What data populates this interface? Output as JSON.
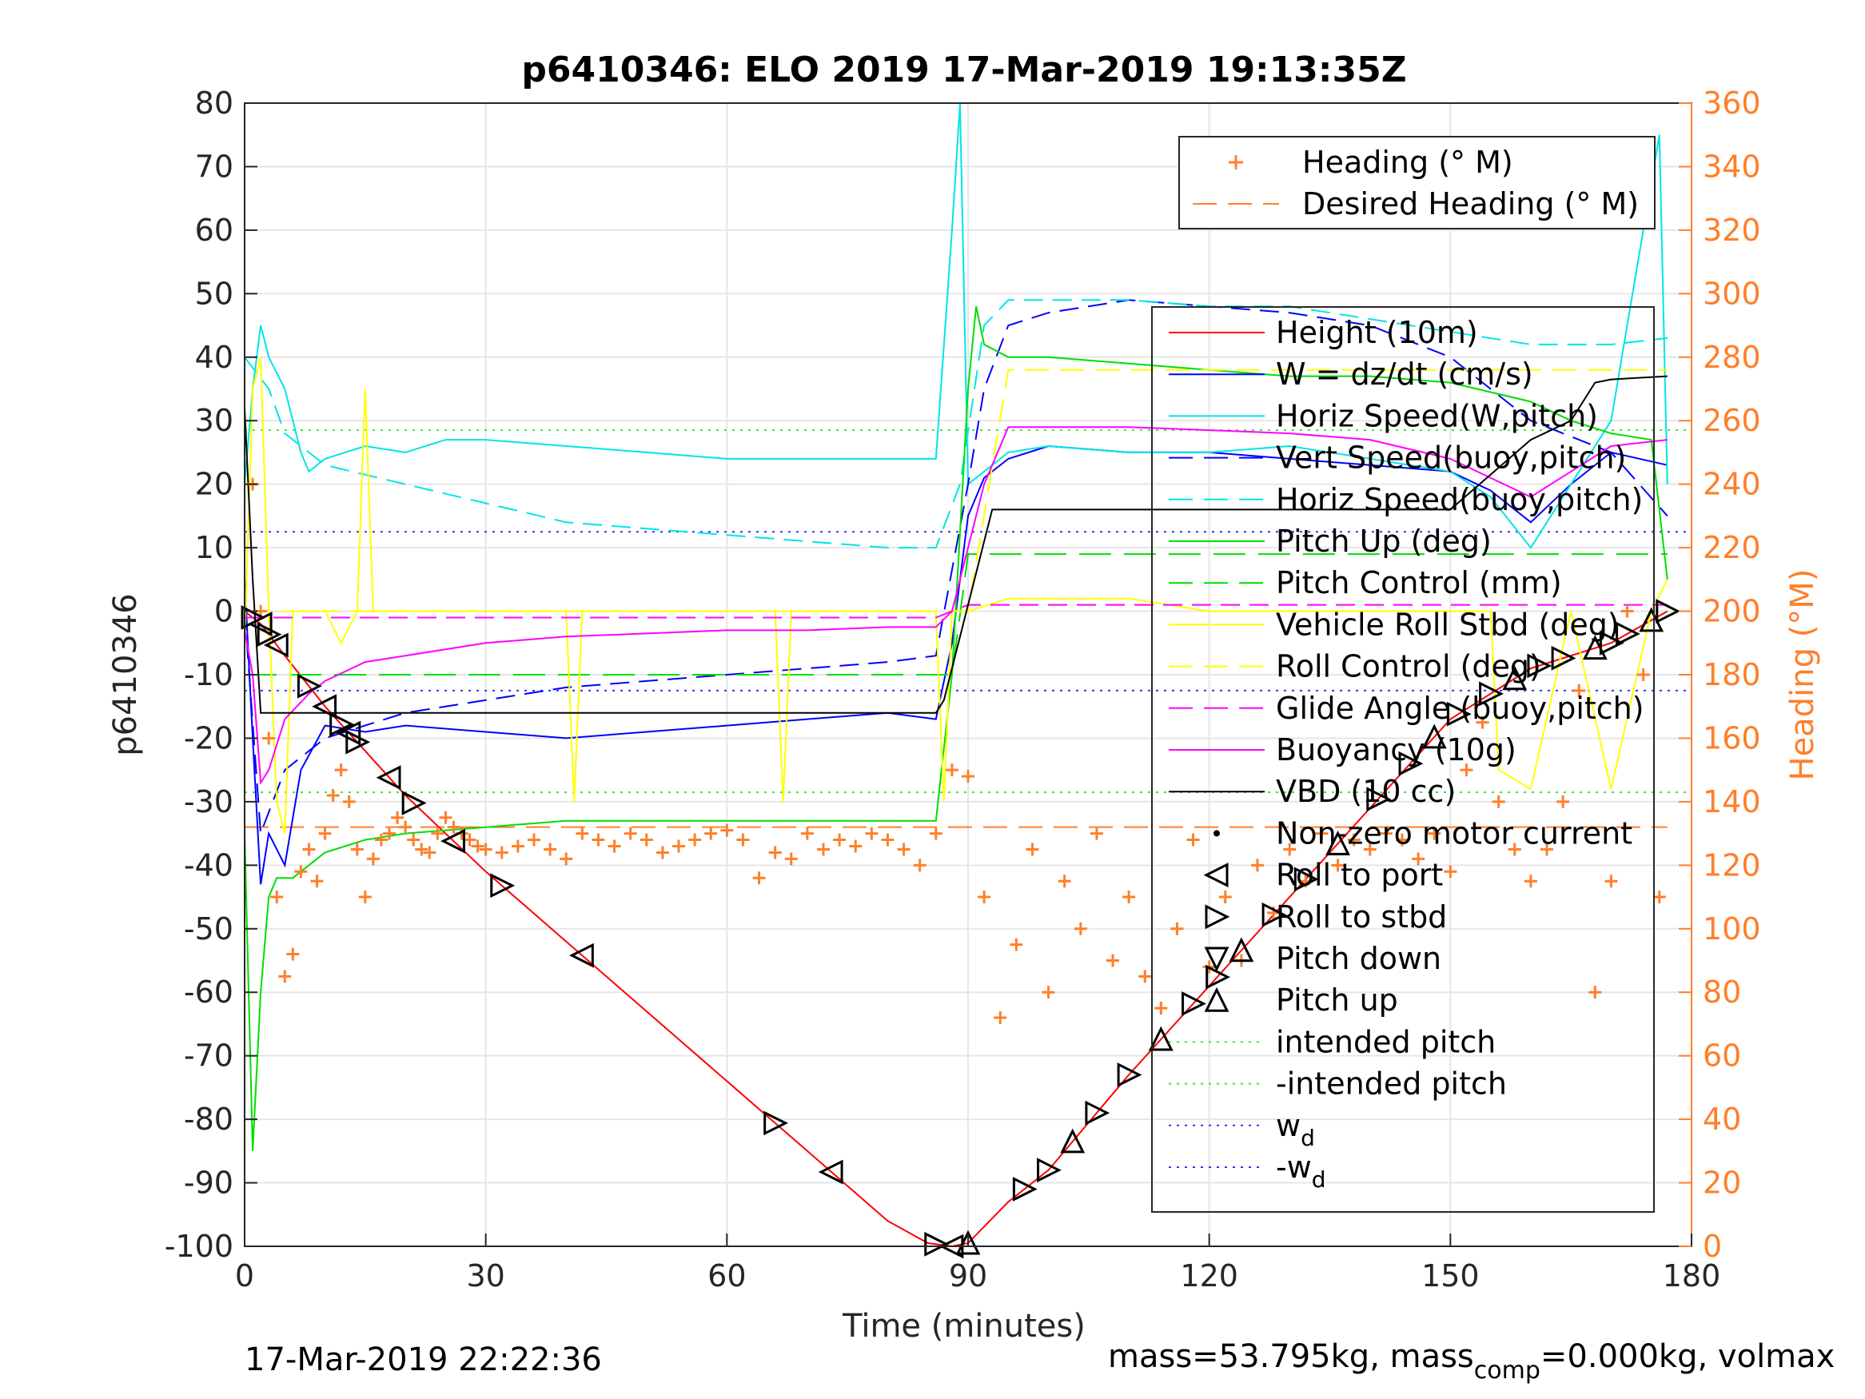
{
  "chart_data": {
    "type": "line",
    "title": "p6410346: ELO 2019 17-Mar-2019 19:13:35Z",
    "xlabel": "Time (minutes)",
    "ylabel_left": "p6410346",
    "ylabel_right": "Heading (°M)",
    "xlim": [
      0,
      180
    ],
    "ylim_left": [
      -100,
      80
    ],
    "ylim_right": [
      0,
      360
    ],
    "xticks": [
      "0",
      "30",
      "60",
      "90",
      "120",
      "150",
      "180"
    ],
    "yticks_left": [
      "80",
      "70",
      "60",
      "50",
      "40",
      "30",
      "20",
      "10",
      "0",
      "-10",
      "-20",
      "-30",
      "-40",
      "-50",
      "-60",
      "-70",
      "-80",
      "-90",
      "-100"
    ],
    "yticks_right": [
      "360",
      "340",
      "320",
      "300",
      "280",
      "260",
      "240",
      "220",
      "200",
      "180",
      "160",
      "140",
      "120",
      "100",
      "80",
      "60",
      "40",
      "20",
      "0"
    ],
    "grid": true,
    "footer_left": "17-Mar-2019 22:22:36",
    "footer_right": {
      "a": "mass=53.795kg, mass",
      "sub": "comp",
      "b": "=0.000kg, volmax"
    },
    "legend_heading": [
      {
        "label": "Heading (° M)",
        "color": "#ff7f2a",
        "style": "plus"
      },
      {
        "label": "Desired Heading (° M)",
        "color": "#ff7f2a",
        "style": "dash"
      }
    ],
    "legend_main": [
      {
        "label": "Height (10m)",
        "color": "#ff0000",
        "style": "solid"
      },
      {
        "label": "W = dz/dt (cm/s)",
        "color": "#0000ff",
        "style": "solid"
      },
      {
        "label": "Horiz Speed(W,pitch)",
        "color": "#00e5e5",
        "style": "solid"
      },
      {
        "label": "Vert Speed(buoy,pitch)",
        "color": "#0000ff",
        "style": "dash"
      },
      {
        "label": "Horiz Speed(buoy,pitch)",
        "color": "#00e5e5",
        "style": "dash"
      },
      {
        "label": "Pitch Up (deg)",
        "color": "#00dd00",
        "style": "solid"
      },
      {
        "label": "Pitch Control (mm)",
        "color": "#00dd00",
        "style": "dash"
      },
      {
        "label": "Vehicle Roll Stbd (deg)",
        "color": "#ffff00",
        "style": "solid"
      },
      {
        "label": "Roll Control (deg)",
        "color": "#ffff00",
        "style": "dash"
      },
      {
        "label": "Glide Angle (buoy,pitch)",
        "color": "#ff00ff",
        "style": "dash"
      },
      {
        "label": "Buoyancy (10g)",
        "color": "#ff00ff",
        "style": "solid"
      },
      {
        "label": "VBD (10 cc)",
        "color": "#000000",
        "style": "solid"
      },
      {
        "label": "Non-zero motor current",
        "color": "#000000",
        "style": "dot"
      },
      {
        "label": "Roll to port",
        "color": "#000000",
        "style": "tri-left"
      },
      {
        "label": "Roll to stbd",
        "color": "#000000",
        "style": "tri-right"
      },
      {
        "label": "Pitch down",
        "color": "#000000",
        "style": "tri-down"
      },
      {
        "label": "Pitch up",
        "color": "#000000",
        "style": "tri-up"
      },
      {
        "label": "intended pitch",
        "color": "#44dd44",
        "style": "dotted"
      },
      {
        "label": "-intended pitch",
        "color": "#44dd44",
        "style": "dotted"
      },
      {
        "label": "w",
        "sub": "d",
        "color": "#3333ff",
        "style": "dotted"
      },
      {
        "label": "-w",
        "sub": "d",
        "color": "#3333ff",
        "style": "dotted"
      }
    ],
    "hlines": [
      {
        "y": 28.5,
        "color": "#44dd44"
      },
      {
        "y": -28.5,
        "color": "#44dd44"
      },
      {
        "y": 12.5,
        "color": "#3333ff"
      },
      {
        "y": -12.5,
        "color": "#3333ff"
      }
    ],
    "desired_heading": [
      {
        "x": [
          0,
          177
        ],
        "y": [
          132,
          132
        ]
      }
    ],
    "series": [
      {
        "name": "Height (10m)",
        "color": "#ff0000",
        "dash": "",
        "x": [
          0,
          2,
          5,
          10,
          15,
          20,
          25,
          30,
          40,
          50,
          60,
          70,
          80,
          85,
          88,
          90,
          95,
          100,
          110,
          120,
          130,
          140,
          150,
          160,
          170,
          177
        ],
        "y": [
          0,
          -2,
          -7,
          -15,
          -22,
          -29,
          -35,
          -41,
          -52,
          -63,
          -74,
          -85,
          -96,
          -99.5,
          -100,
          -99.5,
          -93,
          -88,
          -73,
          -59,
          -45,
          -31,
          -17,
          -9,
          -5,
          0
        ]
      },
      {
        "name": "W = dz/dt (cm/s)",
        "color": "#0000ff",
        "dash": "",
        "x": [
          0,
          1,
          2,
          3,
          5,
          7,
          10,
          15,
          20,
          30,
          40,
          50,
          60,
          70,
          80,
          86,
          88,
          90,
          92,
          95,
          100,
          110,
          120,
          130,
          140,
          150,
          155,
          160,
          165,
          170,
          177
        ],
        "y": [
          5,
          -20,
          -43,
          -35,
          -40,
          -25,
          -18,
          -19,
          -18,
          -19,
          -20,
          -19,
          -18,
          -17,
          -16,
          -17,
          -5,
          15,
          21,
          24,
          26,
          25,
          25,
          24,
          23,
          22,
          19,
          14,
          20,
          25,
          23
        ]
      },
      {
        "name": "Horiz Speed(W,pitch)",
        "color": "#00e5e5",
        "dash": "",
        "x": [
          0,
          1,
          2,
          3,
          5,
          7,
          8,
          10,
          15,
          20,
          25,
          30,
          40,
          50,
          60,
          70,
          80,
          86,
          88,
          89,
          90,
          92,
          95,
          100,
          110,
          120,
          130,
          140,
          150,
          155,
          160,
          165,
          170,
          176,
          177
        ],
        "y": [
          20,
          35,
          45,
          40,
          35,
          25,
          22,
          24,
          26,
          25,
          27,
          27,
          26,
          25,
          24,
          24,
          24,
          24,
          60,
          80,
          20,
          22,
          25,
          26,
          25,
          25,
          26,
          24,
          22,
          18,
          10,
          20,
          30,
          75,
          20
        ]
      },
      {
        "name": "Vert Speed(buoy,pitch)",
        "color": "#0000ff",
        "dash": "24,12",
        "x": [
          0,
          2,
          5,
          10,
          20,
          30,
          40,
          50,
          60,
          70,
          80,
          86,
          90,
          92,
          95,
          100,
          110,
          120,
          130,
          140,
          150,
          160,
          170,
          177
        ],
        "y": [
          0,
          -35,
          -25,
          -20,
          -16,
          -14,
          -12,
          -11,
          -10,
          -9,
          -8,
          -7,
          20,
          35,
          45,
          47,
          49,
          48,
          47,
          45,
          40,
          30,
          25,
          15
        ]
      },
      {
        "name": "Horiz Speed(buoy,pitch)",
        "color": "#00e5e5",
        "dash": "24,12",
        "x": [
          0,
          3,
          5,
          10,
          20,
          30,
          40,
          50,
          60,
          70,
          80,
          86,
          89,
          92,
          95,
          100,
          110,
          120,
          130,
          140,
          150,
          160,
          170,
          177
        ],
        "y": [
          40,
          35,
          28,
          23,
          20,
          17,
          14,
          13,
          12,
          11,
          10,
          10,
          20,
          45,
          49,
          49,
          49,
          48,
          48,
          46,
          44,
          42,
          42,
          43
        ]
      },
      {
        "name": "Pitch Up (deg)",
        "color": "#00dd00",
        "dash": "",
        "x": [
          0,
          1,
          2,
          3,
          4,
          6,
          8,
          10,
          15,
          20,
          30,
          40,
          50,
          60,
          70,
          80,
          86,
          88,
          90,
          91,
          92,
          95,
          100,
          110,
          120,
          130,
          140,
          150,
          160,
          165,
          170,
          175,
          177
        ],
        "y": [
          -35,
          -85,
          -60,
          -45,
          -42,
          -42,
          -40,
          -38,
          -36,
          -35,
          -34,
          -33,
          -33,
          -33,
          -33,
          -33,
          -33,
          -10,
          35,
          48,
          42,
          40,
          40,
          39,
          38,
          37,
          37,
          36,
          33,
          30,
          28,
          27,
          5
        ]
      },
      {
        "name": "Pitch Control (mm)",
        "color": "#00dd00",
        "dash": "40,16",
        "x": [
          0,
          5,
          10,
          20,
          30,
          40,
          50,
          60,
          70,
          80,
          86,
          88,
          90,
          95,
          100,
          110,
          120,
          130,
          140,
          150,
          160,
          170,
          177
        ],
        "y": [
          -10,
          -10,
          -10,
          -10,
          -10,
          -10,
          -10,
          -10,
          -10,
          -10,
          -10,
          -10,
          9,
          9,
          9,
          9,
          9,
          9,
          9,
          9,
          9,
          9,
          9
        ]
      },
      {
        "name": "Vehicle Roll Stbd (deg)",
        "color": "#ffff00",
        "dash": "",
        "x": [
          0,
          1,
          2,
          3,
          4,
          5,
          6,
          8,
          10,
          12,
          14,
          15,
          16,
          17,
          20,
          25,
          30,
          40,
          41,
          42,
          50,
          60,
          66,
          67,
          68,
          75,
          80,
          86,
          87,
          88,
          90,
          95,
          100,
          105,
          110,
          120,
          130,
          140,
          150,
          155,
          156,
          160,
          165,
          170,
          175,
          177
        ],
        "y": [
          -5,
          35,
          40,
          0,
          -30,
          -35,
          0,
          0,
          0,
          -5,
          0,
          35,
          0,
          0,
          0,
          0,
          0,
          0,
          -30,
          0,
          0,
          0,
          0,
          -30,
          0,
          0,
          0,
          0,
          -30,
          0,
          0,
          2,
          2,
          2,
          2,
          0,
          0,
          0,
          0,
          0,
          -25,
          -28,
          0,
          -28,
          0,
          5
        ]
      },
      {
        "name": "Roll Control (deg)",
        "color": "#ffff00",
        "dash": "30,14",
        "x": [
          0,
          10,
          20,
          30,
          40,
          50,
          60,
          70,
          80,
          86,
          88,
          90,
          95,
          100,
          110,
          120,
          130,
          140,
          150,
          160,
          170,
          177
        ],
        "y": [
          0,
          0,
          0,
          0,
          0,
          0,
          0,
          0,
          0,
          0,
          0,
          0,
          38,
          38,
          38,
          38,
          38,
          38,
          38,
          38,
          38,
          38
        ]
      },
      {
        "name": "Glide Angle (buoy,pitch)",
        "color": "#ff00ff",
        "dash": "24,12",
        "x": [
          0,
          10,
          30,
          60,
          86,
          90,
          100,
          120,
          150,
          177
        ],
        "y": [
          -1,
          -1,
          -1,
          -1,
          -1,
          1,
          1,
          1,
          1,
          1
        ]
      },
      {
        "name": "Buoyancy (10g)",
        "color": "#ff00ff",
        "dash": "",
        "x": [
          0,
          1,
          2,
          3,
          5,
          8,
          10,
          15,
          20,
          30,
          40,
          50,
          60,
          70,
          80,
          86,
          88,
          90,
          92,
          95,
          100,
          110,
          120,
          130,
          140,
          150,
          160,
          165,
          170,
          177
        ],
        "y": [
          -3,
          -10,
          -27,
          -25,
          -17,
          -13,
          -11,
          -8,
          -7,
          -5,
          -4,
          -3.5,
          -3,
          -3,
          -2.5,
          -2.5,
          0,
          10,
          20,
          29,
          29,
          29,
          28.5,
          28,
          27,
          24,
          18,
          22,
          26,
          27
        ]
      },
      {
        "name": "VBD (10 cc)",
        "color": "#000000",
        "dash": "",
        "x": [
          0,
          1,
          2,
          10,
          30,
          60,
          86,
          87,
          90,
          93,
          95,
          100,
          120,
          140,
          150,
          160,
          165,
          168,
          170,
          177
        ],
        "y": [
          32,
          5,
          -16,
          -16,
          -16,
          -16,
          -16,
          -14,
          1,
          16,
          16,
          16,
          16,
          16,
          16,
          27,
          30,
          36,
          36.5,
          37
        ]
      }
    ],
    "heading_points_x": [
      1,
      2,
      3,
      4,
      5,
      6,
      7,
      8,
      9,
      10,
      11,
      12,
      13,
      14,
      15,
      16,
      17,
      18,
      19,
      20,
      21,
      22,
      23,
      24,
      25,
      26,
      27,
      28,
      29,
      30,
      32,
      34,
      36,
      38,
      40,
      42,
      44,
      46,
      48,
      50,
      52,
      54,
      56,
      58,
      60,
      62,
      64,
      66,
      68,
      70,
      72,
      74,
      76,
      78,
      80,
      82,
      84,
      86,
      88,
      90,
      92,
      94,
      96,
      98,
      100,
      102,
      104,
      106,
      108,
      110,
      112,
      114,
      116,
      118,
      120,
      122,
      124,
      126,
      128,
      130,
      132,
      134,
      136,
      138,
      140,
      142,
      144,
      146,
      148,
      150,
      152,
      154,
      156,
      158,
      160,
      162,
      164,
      166,
      168,
      170,
      172,
      174,
      176
    ],
    "heading_points_y": [
      240,
      200,
      160,
      110,
      85,
      92,
      118,
      125,
      115,
      130,
      142,
      150,
      140,
      125,
      110,
      122,
      128,
      130,
      135,
      132,
      128,
      125,
      124,
      130,
      135,
      132,
      130,
      128,
      126,
      125,
      124,
      126,
      128,
      125,
      122,
      130,
      128,
      126,
      130,
      128,
      124,
      126,
      128,
      130,
      131,
      128,
      116,
      124,
      122,
      130,
      125,
      128,
      126,
      130,
      128,
      125,
      120,
      130,
      150,
      148,
      110,
      72,
      95,
      125,
      80,
      115,
      100,
      130,
      90,
      110,
      85,
      75,
      100,
      128,
      88,
      110,
      90,
      120,
      105,
      125,
      115,
      130,
      120,
      128,
      125,
      130,
      128,
      122,
      130,
      118,
      150,
      165,
      140,
      125,
      115,
      125,
      140,
      175,
      80,
      115,
      200,
      180,
      110
    ]
  }
}
